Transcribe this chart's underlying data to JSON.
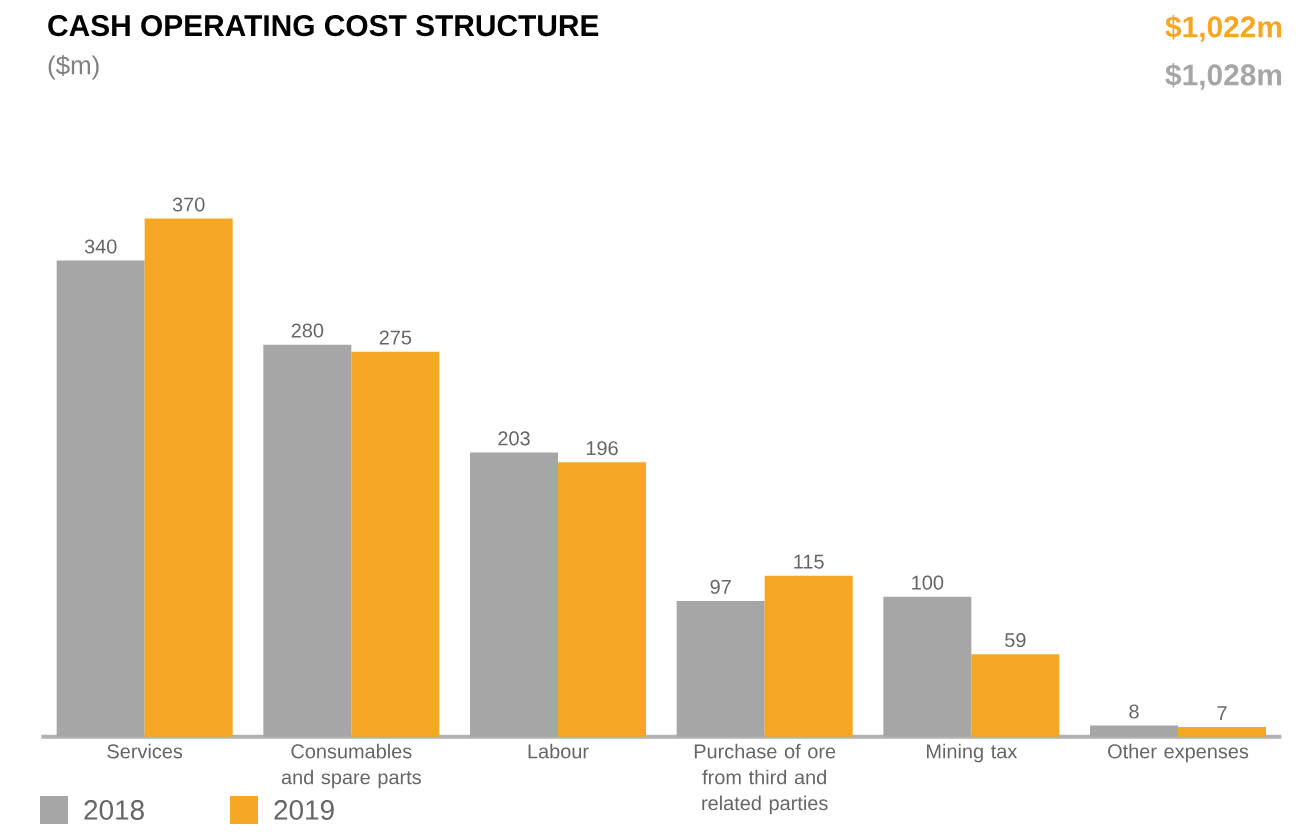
{
  "chart_data": {
    "type": "bar",
    "title": "CASH OPERATING COST STRUCTURE",
    "subtitle": "($m)",
    "annotations": [
      "$1,022m",
      "$1,028m"
    ],
    "categories": [
      "Services",
      "Consumables and spare parts",
      "Labour",
      "Purchase of ore from third and related parties",
      "Mining tax",
      "Other expenses"
    ],
    "series": [
      {
        "name": "2018",
        "color": "#a6a6a6",
        "values": [
          340,
          280,
          203,
          97,
          100,
          8
        ]
      },
      {
        "name": "2019",
        "color": "#f5a623",
        "values": [
          370,
          275,
          196,
          115,
          59,
          7
        ]
      }
    ],
    "data_labels": true,
    "legend": "bottom left"
  }
}
